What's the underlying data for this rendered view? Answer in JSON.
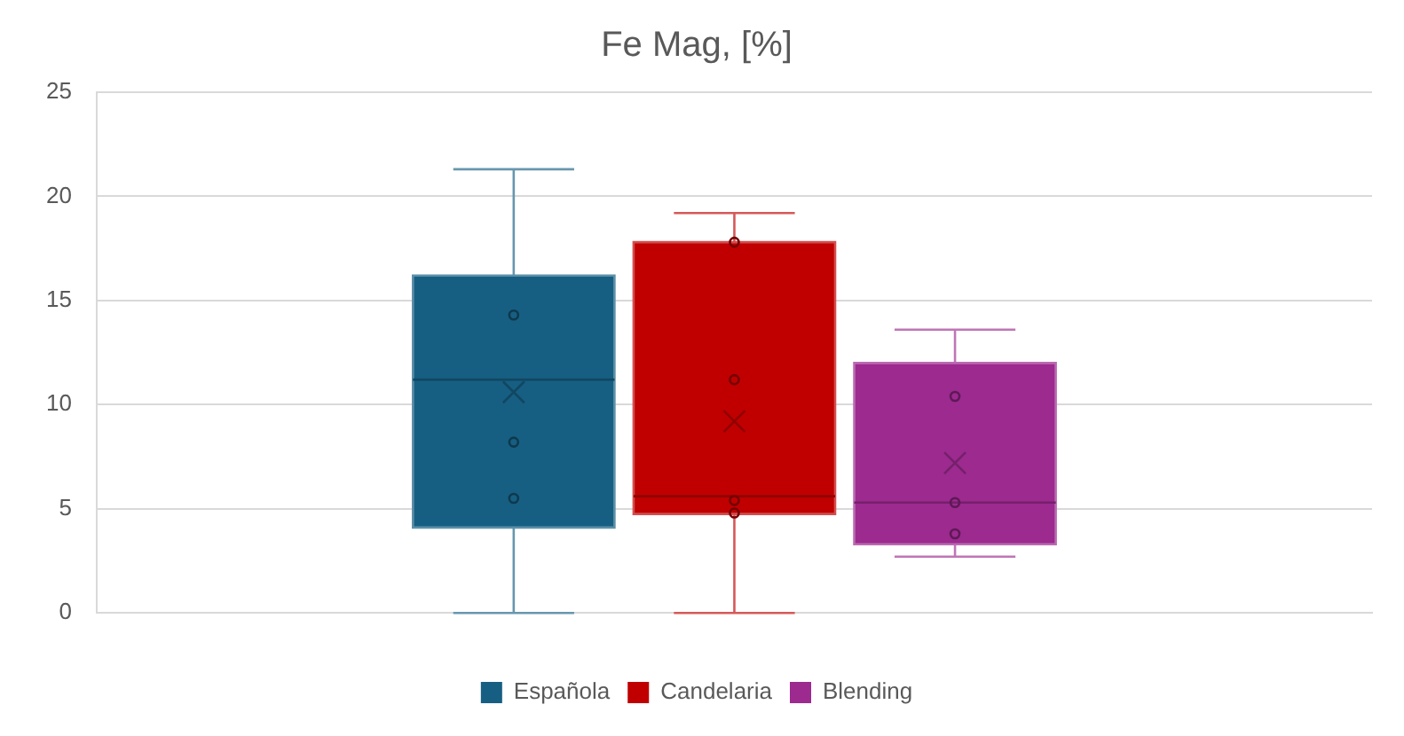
{
  "chart_data": {
    "type": "box",
    "title": "Fe Mag, [%]",
    "categories": [
      null
    ],
    "ylim": [
      0,
      25
    ],
    "yticks": [
      0,
      5,
      10,
      15,
      20,
      25
    ],
    "grid": "y",
    "legend": "bottom",
    "marker": "circle",
    "series": [
      {
        "name": "Española",
        "color": "#175f82",
        "boxes": [
          {
            "low": 0,
            "q1": 4.1,
            "median": 11.2,
            "q3": 16.2,
            "high": 21.3,
            "mean": 10.6
          }
        ]
      },
      {
        "name": "Candelaria",
        "color": "#c00000",
        "boxes": [
          {
            "low": 0,
            "q1": 4.75,
            "median": 5.6,
            "q3": 17.8,
            "high": 19.2,
            "mean": 9.2
          }
        ]
      },
      {
        "name": "Blending",
        "color": "#9c2a8f",
        "boxes": [
          {
            "low": 2.7,
            "q1": 3.3,
            "median": 5.3,
            "q3": 12.0,
            "high": 13.6,
            "mean": 7.2
          }
        ]
      },
      {
        "type": "scatter",
        "color": "#0e394e",
        "x": [
          null,
          null,
          null
        ],
        "values": [
          14.3,
          8.2,
          5.5
        ]
      },
      {
        "type": "scatter",
        "color": "#730000",
        "x": [
          null,
          null,
          null,
          null
        ],
        "values": [
          17.8,
          11.2,
          5.4,
          4.8
        ]
      },
      {
        "type": "scatter",
        "color": "#5e1956",
        "x": [
          null,
          null,
          null
        ],
        "values": [
          10.4,
          5.3,
          3.8
        ]
      }
    ]
  }
}
